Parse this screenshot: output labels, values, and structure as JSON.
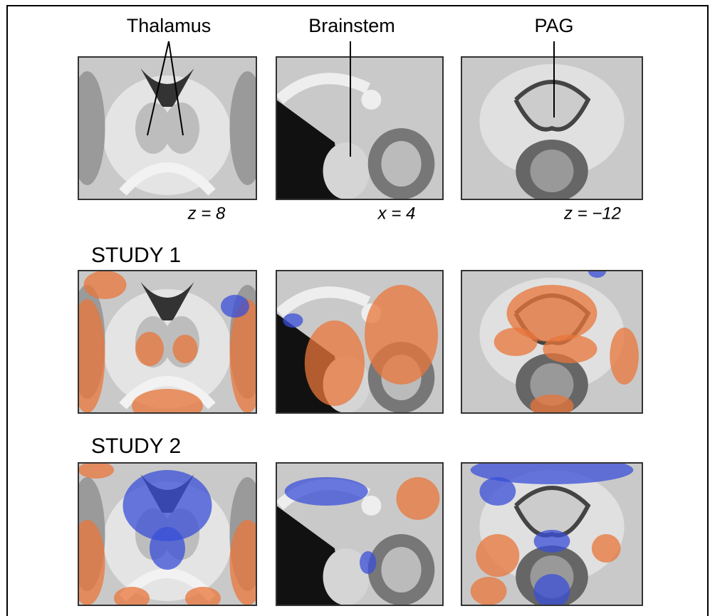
{
  "column_labels": [
    "Thalamus",
    "Brainstem",
    "PAG"
  ],
  "slice_labels": [
    "z = 8",
    "x = 4",
    "z = −12"
  ],
  "rows": [
    {
      "label": "STUDY 1"
    },
    {
      "label": "STUDY 2"
    }
  ]
}
